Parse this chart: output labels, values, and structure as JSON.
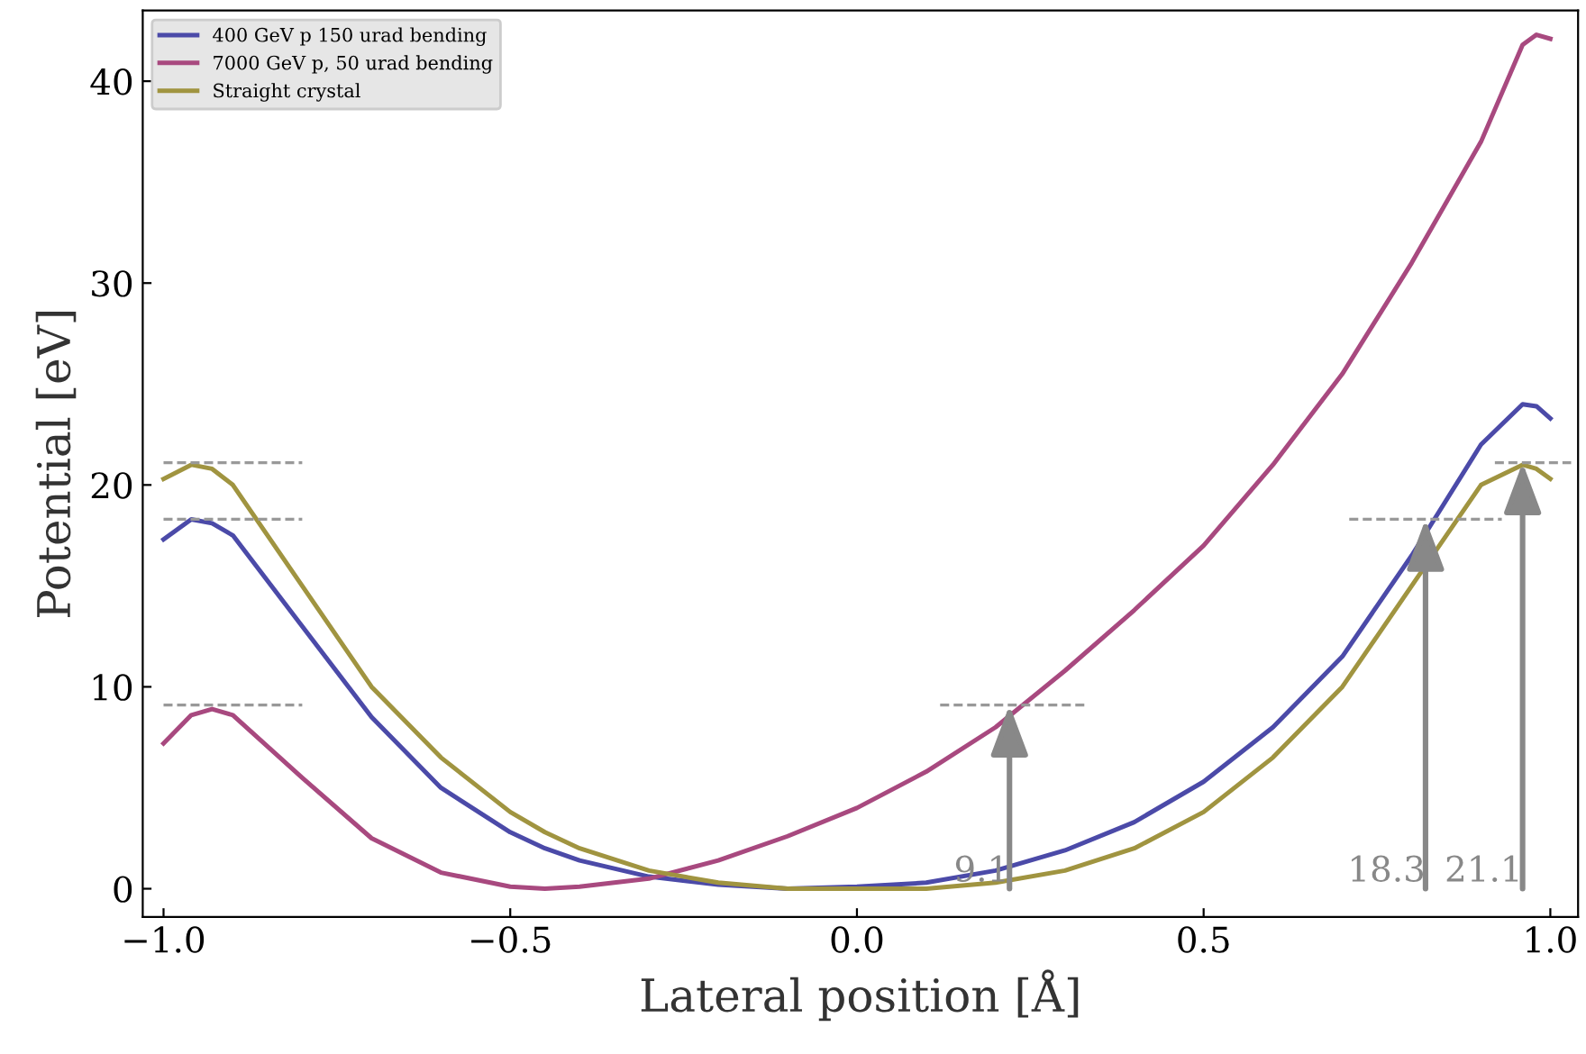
{
  "chart_data": {
    "type": "line",
    "xlabel": "Lateral position [Å]",
    "ylabel": "Potential [eV]",
    "xlim": [
      -1.03,
      1.04
    ],
    "ylim": [
      -1.4,
      43.5
    ],
    "xticks": [
      {
        "value": -1.0,
        "label": "−1.0"
      },
      {
        "value": -0.5,
        "label": "−0.5"
      },
      {
        "value": 0.0,
        "label": "0.0"
      },
      {
        "value": 0.5,
        "label": "0.5"
      },
      {
        "value": 1.0,
        "label": "1.0"
      }
    ],
    "yticks": [
      0,
      10,
      20,
      30,
      40
    ],
    "grid": false,
    "legend": "top left",
    "line_style": "solid",
    "marker": "none",
    "x": [
      -1.0,
      -0.96,
      -0.93,
      -0.9,
      -0.8,
      -0.7,
      -0.6,
      -0.5,
      -0.45,
      -0.4,
      -0.3,
      -0.2,
      -0.1,
      0.0,
      0.1,
      0.2,
      0.3,
      0.4,
      0.5,
      0.6,
      0.7,
      0.8,
      0.9,
      0.96,
      0.98,
      1.0
    ],
    "series": [
      {
        "name": "400 GeV p 150 urad bending",
        "color": "#4b4aa8",
        "values": [
          17.3,
          18.3,
          18.1,
          17.5,
          13,
          8.5,
          5,
          2.8,
          2,
          1.4,
          0.6,
          0.2,
          0,
          0.1,
          0.3,
          0.9,
          1.9,
          3.3,
          5.3,
          8,
          11.5,
          16.5,
          22,
          24,
          23.9,
          23.3
        ]
      },
      {
        "name": "7000 GeV p, 50 urad bending",
        "color": "#a8497f",
        "values": [
          7.2,
          8.6,
          8.9,
          8.6,
          5.5,
          2.5,
          0.8,
          0.1,
          0,
          0.1,
          0.5,
          1.4,
          2.6,
          4.0,
          5.8,
          8.0,
          10.8,
          13.8,
          17,
          21,
          25.5,
          31,
          37,
          41.8,
          42.3,
          42.1
        ]
      },
      {
        "name": "Straight crystal",
        "color": "#a09440",
        "values": [
          20.3,
          21.0,
          20.8,
          20,
          15,
          10,
          6.5,
          3.8,
          2.8,
          2,
          0.9,
          0.3,
          0,
          0,
          0,
          0.3,
          0.9,
          2,
          3.8,
          6.5,
          10,
          15,
          20,
          21.0,
          20.8,
          20.3
        ]
      },
      {
        "type": "line",
        "line_style": "dashed",
        "color": "#999999",
        "x": [
          -1.0,
          -0.8
        ],
        "values": [
          21.1,
          21.1
        ]
      },
      {
        "type": "line",
        "line_style": "dashed",
        "color": "#999999",
        "x": [
          -1.0,
          -0.8
        ],
        "values": [
          18.3,
          18.3
        ]
      },
      {
        "type": "line",
        "line_style": "dashed",
        "color": "#999999",
        "x": [
          -1.0,
          -0.8
        ],
        "values": [
          9.1,
          9.1
        ]
      },
      {
        "type": "line",
        "line_style": "dashed",
        "color": "#999999",
        "x": [
          0.12,
          0.33
        ],
        "values": [
          9.1,
          9.1
        ]
      },
      {
        "type": "line",
        "line_style": "dashed",
        "color": "#999999",
        "x": [
          0.71,
          0.93
        ],
        "values": [
          18.3,
          18.3
        ]
      },
      {
        "type": "line",
        "line_style": "dashed",
        "color": "#999999",
        "x": [
          0.92,
          1.03
        ],
        "values": [
          21.1,
          21.1
        ]
      }
    ],
    "annotations": [
      {
        "text": "9.1",
        "x": 0.22,
        "y": 9.1
      },
      {
        "text": "18.3",
        "x": 0.82,
        "y": 18.3
      },
      {
        "text": "21.1",
        "x": 0.96,
        "y": 21.1
      }
    ]
  }
}
